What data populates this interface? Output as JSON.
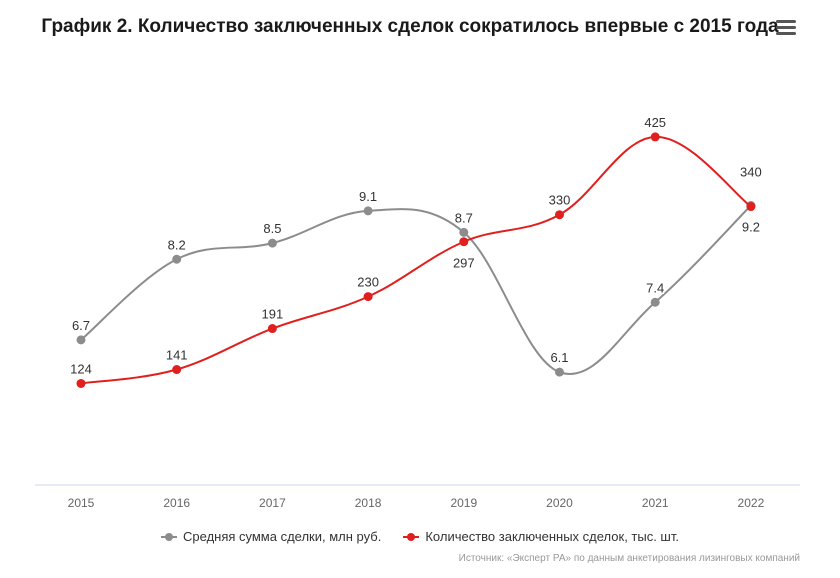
{
  "title": "График 2. Количество заключенных сделок сократилось впервые с 2015 года",
  "source": "Источник: «Эксперт РА» по данным анкетирования лизинговых компаний",
  "chart_data": {
    "type": "line",
    "title": "График 2. Количество заключенных сделок сократилось впервые с 2015 года",
    "categories": [
      "2015",
      "2016",
      "2017",
      "2018",
      "2019",
      "2020",
      "2021",
      "2022"
    ],
    "series": [
      {
        "name": "Средняя сумма сделки, млн руб.",
        "color": "#8c8c8c",
        "values": [
          6.7,
          8.2,
          8.5,
          9.1,
          8.7,
          6.1,
          7.4,
          9.2
        ],
        "labels": [
          "6.7",
          "8.2",
          "8.5",
          "9.1",
          "8.7",
          "6.1",
          "7.4",
          "9.2"
        ],
        "ylim": [
          4,
          12
        ]
      },
      {
        "name": "Количество заключенных сделок, тыс. шт.",
        "color": "#e0201e",
        "values": [
          124,
          141,
          191,
          230,
          297,
          330,
          425,
          340
        ],
        "labels": [
          "124",
          "141",
          "191",
          "230",
          "297",
          "330",
          "425",
          "340"
        ],
        "ylim": [
          0,
          525
        ]
      }
    ],
    "legend": "bottom",
    "grid": false
  }
}
